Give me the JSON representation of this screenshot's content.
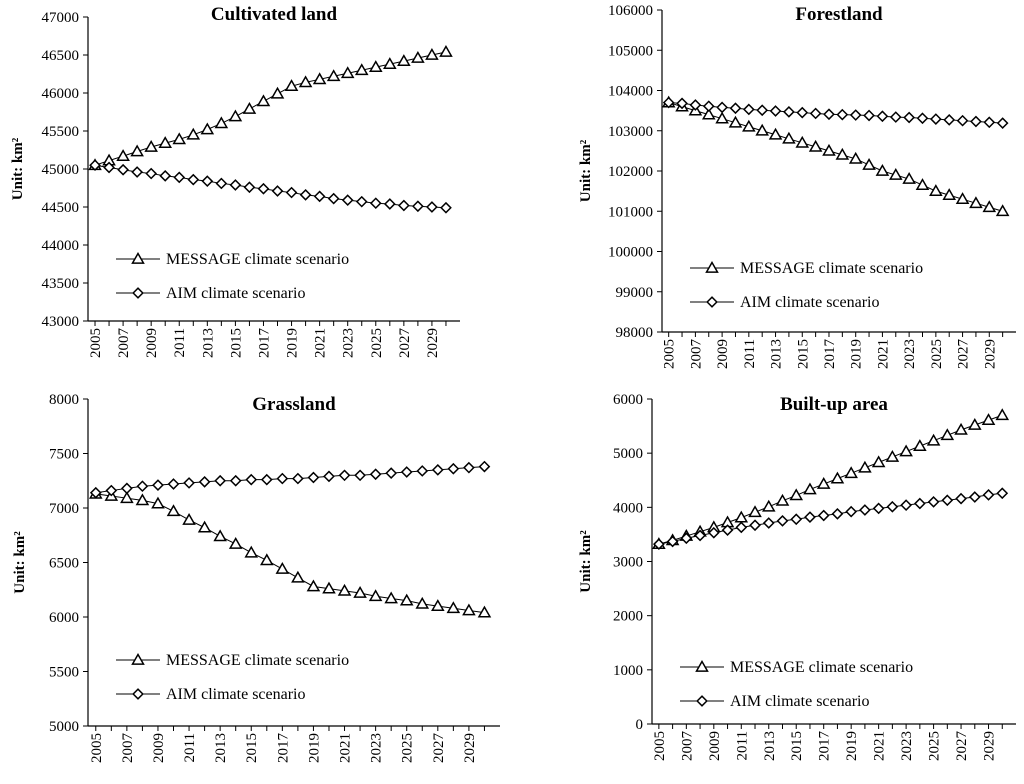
{
  "figure": {
    "width": 1024,
    "height": 779
  },
  "chart_data": [
    {
      "type": "line",
      "title": "Cultivated land",
      "xlabel": "",
      "ylabel": "Unit: km²",
      "ylim": [
        43000,
        47000
      ],
      "ystep": 500,
      "x": [
        2005,
        2006,
        2007,
        2008,
        2009,
        2010,
        2011,
        2012,
        2013,
        2014,
        2015,
        2016,
        2017,
        2018,
        2019,
        2020,
        2021,
        2022,
        2023,
        2024,
        2025,
        2026,
        2027,
        2028,
        2029,
        2030
      ],
      "xtick_labels": [
        "2005",
        "2007",
        "2009",
        "2011",
        "2013",
        "2015",
        "2017",
        "2019",
        "2021",
        "2023",
        "2025",
        "2027",
        "2029"
      ],
      "legend_position": "lower-left",
      "series": [
        {
          "name": "MESSAGE climate scenario",
          "marker": "triangle",
          "values": [
            45050,
            45110,
            45170,
            45230,
            45290,
            45340,
            45390,
            45450,
            45520,
            45600,
            45690,
            45790,
            45890,
            45990,
            46090,
            46140,
            46180,
            46220,
            46260,
            46300,
            46340,
            46380,
            46420,
            46460,
            46500,
            46540
          ]
        },
        {
          "name": "AIM climate scenario",
          "marker": "diamond",
          "values": [
            45050,
            45020,
            44990,
            44960,
            44940,
            44910,
            44890,
            44860,
            44840,
            44810,
            44790,
            44760,
            44740,
            44710,
            44690,
            44660,
            44640,
            44610,
            44590,
            44570,
            44550,
            44540,
            44520,
            44510,
            44500,
            44490
          ]
        }
      ]
    },
    {
      "type": "line",
      "title": "Forestland",
      "xlabel": "",
      "ylabel": "Unit: km²",
      "ylim": [
        98000,
        106000
      ],
      "ystep": 1000,
      "x": [
        2005,
        2006,
        2007,
        2008,
        2009,
        2010,
        2011,
        2012,
        2013,
        2014,
        2015,
        2016,
        2017,
        2018,
        2019,
        2020,
        2021,
        2022,
        2023,
        2024,
        2025,
        2026,
        2027,
        2028,
        2029,
        2030
      ],
      "xtick_labels": [
        "2005",
        "2007",
        "2009",
        "2011",
        "2013",
        "2015",
        "2017",
        "2019",
        "2021",
        "2023",
        "2025",
        "2027",
        "2029"
      ],
      "legend_position": "lower-left",
      "series": [
        {
          "name": "MESSAGE climate scenario",
          "marker": "triangle",
          "values": [
            103700,
            103600,
            103500,
            103400,
            103300,
            103200,
            103100,
            103000,
            102900,
            102800,
            102700,
            102600,
            102500,
            102400,
            102300,
            102150,
            102000,
            101900,
            101800,
            101650,
            101500,
            101400,
            101300,
            101200,
            101100,
            101000
          ]
        },
        {
          "name": "AIM climate scenario",
          "marker": "diamond",
          "values": [
            103700,
            103680,
            103640,
            103610,
            103580,
            103560,
            103530,
            103510,
            103490,
            103470,
            103450,
            103430,
            103410,
            103400,
            103390,
            103380,
            103360,
            103340,
            103330,
            103310,
            103290,
            103270,
            103250,
            103230,
            103210,
            103190
          ]
        }
      ]
    },
    {
      "type": "line",
      "title": "Grassland",
      "xlabel": "",
      "ylabel": "Unit: km²",
      "ylim": [
        5000,
        8000
      ],
      "ystep": 500,
      "x": [
        2005,
        2006,
        2007,
        2008,
        2009,
        2010,
        2011,
        2012,
        2013,
        2014,
        2015,
        2016,
        2017,
        2018,
        2019,
        2020,
        2021,
        2022,
        2023,
        2024,
        2025,
        2026,
        2027,
        2028,
        2029,
        2030
      ],
      "xtick_labels": [
        "2005",
        "2007",
        "2009",
        "2011",
        "2013",
        "2015",
        "2017",
        "2019",
        "2021",
        "2023",
        "2025",
        "2027",
        "2029"
      ],
      "legend_position": "lower-left",
      "series": [
        {
          "name": "MESSAGE climate scenario",
          "marker": "triangle",
          "values": [
            7130,
            7110,
            7090,
            7070,
            7040,
            6970,
            6890,
            6820,
            6740,
            6670,
            6590,
            6520,
            6440,
            6360,
            6280,
            6260,
            6240,
            6220,
            6190,
            6170,
            6150,
            6120,
            6100,
            6080,
            6060,
            6040
          ]
        },
        {
          "name": "AIM climate scenario",
          "marker": "diamond",
          "values": [
            7140,
            7160,
            7180,
            7200,
            7210,
            7220,
            7230,
            7240,
            7250,
            7250,
            7260,
            7260,
            7270,
            7270,
            7280,
            7290,
            7300,
            7300,
            7310,
            7320,
            7330,
            7340,
            7350,
            7360,
            7370,
            7380
          ]
        }
      ]
    },
    {
      "type": "line",
      "title": "Built-up area",
      "xlabel": "",
      "ylabel": "Unit: km²",
      "ylim": [
        0,
        6000
      ],
      "ystep": 1000,
      "x": [
        2005,
        2006,
        2007,
        2008,
        2009,
        2010,
        2011,
        2012,
        2013,
        2014,
        2015,
        2016,
        2017,
        2018,
        2019,
        2020,
        2021,
        2022,
        2023,
        2024,
        2025,
        2026,
        2027,
        2028,
        2029,
        2030
      ],
      "xtick_labels": [
        "2005",
        "2007",
        "2009",
        "2011",
        "2013",
        "2015",
        "2017",
        "2019",
        "2021",
        "2023",
        "2025",
        "2027",
        "2029"
      ],
      "legend_position": "lower-left",
      "series": [
        {
          "name": "MESSAGE climate scenario",
          "marker": "triangle",
          "values": [
            3320,
            3390,
            3470,
            3550,
            3630,
            3720,
            3810,
            3910,
            4010,
            4120,
            4220,
            4330,
            4430,
            4530,
            4630,
            4730,
            4830,
            4930,
            5030,
            5130,
            5230,
            5330,
            5430,
            5520,
            5610,
            5700
          ]
        },
        {
          "name": "AIM climate scenario",
          "marker": "diamond",
          "values": [
            3320,
            3370,
            3430,
            3480,
            3530,
            3580,
            3630,
            3670,
            3710,
            3750,
            3780,
            3820,
            3850,
            3880,
            3920,
            3950,
            3980,
            4010,
            4040,
            4070,
            4100,
            4130,
            4160,
            4190,
            4230,
            4260
          ]
        }
      ]
    }
  ]
}
